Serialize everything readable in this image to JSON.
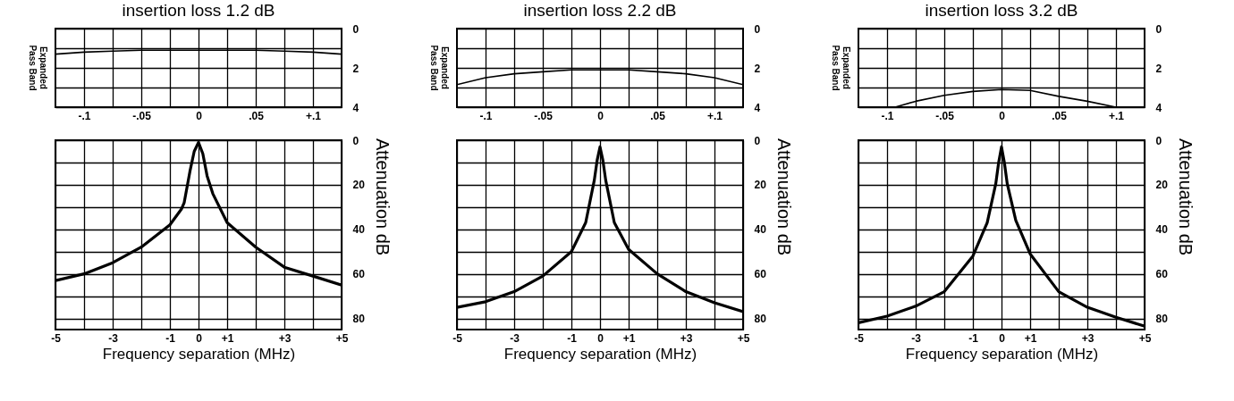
{
  "chart_data": [
    {
      "type": "line",
      "title": "insertion loss  1.2 dB",
      "ylabel": "Expanded Pass Band",
      "color": "#000000",
      "grid": true,
      "line_style": "solid",
      "x": [
        -0.125,
        -0.1,
        -0.075,
        -0.05,
        -0.025,
        0,
        0.025,
        0.05,
        0.075,
        0.1,
        0.125
      ],
      "values": [
        1.3,
        1.2,
        1.15,
        1.1,
        1.1,
        1.1,
        1.1,
        1.1,
        1.15,
        1.2,
        1.3
      ],
      "xlim": [
        -0.125,
        0.125
      ],
      "ylim": [
        4,
        0
      ],
      "xticks": [
        {
          "value": -0.1,
          "label": "-.1"
        },
        {
          "value": -0.075,
          "label": null
        },
        {
          "value": -0.05,
          "label": "-.05"
        },
        {
          "value": -0.025,
          "label": null
        },
        0,
        {
          "value": 0.025,
          "label": null
        },
        {
          "value": 0.05,
          "label": ".05"
        },
        {
          "value": 0.075,
          "label": null
        },
        {
          "value": 0.1,
          "label": "+.1"
        }
      ],
      "yticks": [
        0,
        {
          "value": 1,
          "label": null
        },
        2,
        {
          "value": 3,
          "label": null
        },
        4
      ]
    },
    {
      "type": "line",
      "title": "insertion loss  2.2 dB",
      "ylabel": "Expanded Pass Band",
      "color": "#000000",
      "grid": true,
      "line_style": "solid",
      "x": [
        -0.125,
        -0.1,
        -0.075,
        -0.05,
        -0.025,
        0,
        0.025,
        0.05,
        0.075,
        0.1,
        0.125
      ],
      "values": [
        2.85,
        2.5,
        2.3,
        2.2,
        2.1,
        2.1,
        2.1,
        2.2,
        2.3,
        2.5,
        2.85
      ],
      "xlim": [
        -0.125,
        0.125
      ],
      "ylim": [
        4,
        0
      ],
      "xticks": [
        {
          "value": -0.1,
          "label": "-.1"
        },
        {
          "value": -0.075,
          "label": null
        },
        {
          "value": -0.05,
          "label": "-.05"
        },
        {
          "value": -0.025,
          "label": null
        },
        0,
        {
          "value": 0.025,
          "label": null
        },
        {
          "value": 0.05,
          "label": ".05"
        },
        {
          "value": 0.075,
          "label": null
        },
        {
          "value": 0.1,
          "label": "+.1"
        }
      ],
      "yticks": [
        0,
        {
          "value": 1,
          "label": null
        },
        2,
        {
          "value": 3,
          "label": null
        },
        4
      ]
    },
    {
      "type": "line",
      "title": "insertion loss  3.2 dB",
      "ylabel": "Expanded Pass Band",
      "color": "#000000",
      "grid": true,
      "line_style": "solid",
      "x": [
        -0.093,
        -0.075,
        -0.05,
        -0.025,
        0,
        0.025,
        0.05,
        0.075,
        0.1
      ],
      "values": [
        4,
        3.7,
        3.4,
        3.2,
        3.1,
        3.15,
        3.45,
        3.7,
        4
      ],
      "xlim": [
        -0.125,
        0.125
      ],
      "ylim": [
        4,
        0
      ],
      "xticks": [
        {
          "value": -0.1,
          "label": "-.1"
        },
        {
          "value": -0.075,
          "label": null
        },
        {
          "value": -0.05,
          "label": "-.05"
        },
        {
          "value": -0.025,
          "label": null
        },
        0,
        {
          "value": 0.025,
          "label": null
        },
        {
          "value": 0.05,
          "label": ".05"
        },
        {
          "value": 0.075,
          "label": null
        },
        {
          "value": 0.1,
          "label": "+.1"
        }
      ],
      "yticks": [
        0,
        {
          "value": 1,
          "label": null
        },
        2,
        {
          "value": 3,
          "label": null
        },
        4
      ]
    },
    {
      "type": "line",
      "xlabel": "Frequency separation (MHz)",
      "ylabel": "Attenuation  dB",
      "color": "#000000",
      "grid": true,
      "line_style": "solid",
      "x": [
        -5,
        -4,
        -3,
        -2,
        -1,
        -0.6,
        -0.5,
        -0.3,
        -0.15,
        0,
        0.15,
        0.3,
        0.5,
        1,
        2,
        3,
        4,
        5
      ],
      "values": [
        63,
        60,
        55,
        48,
        38,
        31,
        28,
        14,
        5,
        1,
        6,
        16,
        24,
        37,
        48,
        57,
        61,
        65
      ],
      "xlim": [
        -5,
        5
      ],
      "ylim": [
        85,
        0
      ],
      "xticks": [
        -5,
        {
          "value": -4,
          "label": null
        },
        -3,
        {
          "value": -2,
          "label": null
        },
        -1,
        0,
        {
          "value": 1,
          "label": "+1"
        },
        {
          "value": 2,
          "label": null
        },
        {
          "value": 3,
          "label": "+3"
        },
        {
          "value": 4,
          "label": null
        },
        {
          "value": 5,
          "label": "+5"
        }
      ],
      "yticks": [
        0,
        {
          "value": 10,
          "label": null
        },
        20,
        {
          "value": 30,
          "label": null
        },
        40,
        {
          "value": 50,
          "label": null
        },
        60,
        {
          "value": 70,
          "label": null
        },
        80
      ]
    },
    {
      "type": "line",
      "xlabel": "Frequency separation (MHz)",
      "ylabel": "Attenuation  dB",
      "color": "#000000",
      "grid": true,
      "line_style": "solid",
      "x": [
        -5,
        -4,
        -3,
        -2,
        -1,
        -0.5,
        -0.2,
        -0.1,
        0,
        0.1,
        0.2,
        0.5,
        1,
        2,
        3,
        4,
        5
      ],
      "values": [
        75,
        72.5,
        68,
        61,
        50,
        37,
        18,
        9,
        3,
        9,
        18,
        37,
        49,
        60,
        68,
        73,
        77
      ],
      "xlim": [
        -5,
        5
      ],
      "ylim": [
        85,
        0
      ],
      "xticks": [
        -5,
        {
          "value": -4,
          "label": null
        },
        -3,
        {
          "value": -2,
          "label": null
        },
        -1,
        0,
        {
          "value": 1,
          "label": "+1"
        },
        {
          "value": 2,
          "label": null
        },
        {
          "value": 3,
          "label": "+3"
        },
        {
          "value": 4,
          "label": null
        },
        {
          "value": 5,
          "label": "+5"
        }
      ],
      "yticks": [
        0,
        {
          "value": 10,
          "label": null
        },
        20,
        {
          "value": 30,
          "label": null
        },
        40,
        {
          "value": 50,
          "label": null
        },
        60,
        {
          "value": 70,
          "label": null
        },
        80
      ]
    },
    {
      "type": "line",
      "xlabel": "Frequency separation (MHz)",
      "ylabel": "Attenuation  dB",
      "color": "#000000",
      "grid": true,
      "line_style": "solid",
      "x": [
        -5,
        -4,
        -3,
        -2,
        -1,
        -0.5,
        -0.2,
        -0.1,
        0,
        0.1,
        0.2,
        0.5,
        1,
        2,
        3,
        4,
        5
      ],
      "values": [
        82,
        79,
        74.5,
        68,
        52,
        37,
        19.5,
        10,
        3,
        10,
        19.5,
        36,
        51,
        68,
        75,
        79.5,
        83.5
      ],
      "xlim": [
        -5,
        5
      ],
      "ylim": [
        85,
        0
      ],
      "xticks": [
        -5,
        {
          "value": -4,
          "label": null
        },
        -3,
        {
          "value": -2,
          "label": null
        },
        -1,
        0,
        {
          "value": 1,
          "label": "+1"
        },
        {
          "value": 2,
          "label": null
        },
        {
          "value": 3,
          "label": "+3"
        },
        {
          "value": 4,
          "label": null
        },
        {
          "value": 5,
          "label": "+5"
        }
      ],
      "yticks": [
        0,
        {
          "value": 10,
          "label": null
        },
        20,
        {
          "value": 30,
          "label": null
        },
        40,
        {
          "value": 50,
          "label": null
        },
        60,
        {
          "value": 70,
          "label": null
        },
        80
      ]
    }
  ]
}
